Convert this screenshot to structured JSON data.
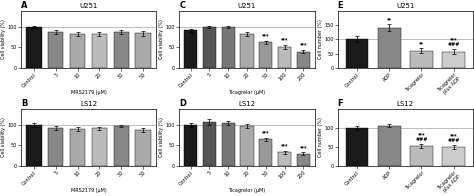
{
  "chart_data": [
    {
      "type": "bar",
      "title": "U251",
      "annotations": [
        {
          "text": "A"
        }
      ],
      "xlabel": "MRS2179 (μM)",
      "ylabel": "Cell viability (%)",
      "categories": [
        "Control",
        "5",
        "10",
        "20",
        "30",
        "50"
      ],
      "values": [
        100,
        88,
        82,
        83,
        87,
        85
      ],
      "errors": [
        3,
        5,
        5,
        4,
        5,
        6
      ],
      "colors": [
        "#1a1a1a",
        "#888888",
        "#aaaaaa",
        "#bbbbbb",
        "#888888",
        "#aaaaaa"
      ],
      "reference_line": 100,
      "ylim": [
        0,
        140
      ],
      "yticks": [
        0,
        50,
        100
      ]
    },
    {
      "type": "bar",
      "title": "U251",
      "annotations": [
        {
          "text": "C"
        },
        {
          "category": "50",
          "text": "***"
        },
        {
          "category": "100",
          "text": "***"
        },
        {
          "category": "200",
          "text": "***"
        }
      ],
      "xlabel": "Ticagrelor (μM)",
      "ylabel": "Cell viability (%)",
      "categories": [
        "Control",
        "5",
        "10",
        "20",
        "50",
        "100",
        "200"
      ],
      "values": [
        92,
        100,
        100,
        83,
        63,
        52,
        40
      ],
      "errors": [
        4,
        3,
        3,
        4,
        4,
        5,
        4
      ],
      "colors": [
        "#1a1a1a",
        "#555555",
        "#777777",
        "#aaaaaa",
        "#999999",
        "#bbbbbb",
        "#888888"
      ],
      "reference_line": 100,
      "ylim": [
        0,
        140
      ],
      "yticks": [
        0,
        50,
        100
      ]
    },
    {
      "type": "bar",
      "title": "U251",
      "annotations": [
        {
          "text": "E"
        },
        {
          "category": "ADP",
          "text": "**"
        },
        {
          "category": "Ticagrelor",
          "text": "**"
        },
        {
          "category": "Ticagrelor\nplus ADP",
          "text": "***\n###"
        }
      ],
      "ylabel": "Cell number (%)",
      "categories": [
        "Control",
        "ADP",
        "Ticagrelor",
        "Ticagrelor\nplus ADP"
      ],
      "values": [
        100,
        140,
        60,
        57
      ],
      "errors": [
        10,
        12,
        8,
        8
      ],
      "colors": [
        "#1a1a1a",
        "#888888",
        "#bbbbbb",
        "#cccccc"
      ],
      "reference_line": 100,
      "ylim": [
        0,
        200
      ],
      "yticks": [
        0,
        50,
        100,
        150
      ]
    },
    {
      "type": "bar",
      "title": "LS12",
      "annotations": [
        {
          "text": "B"
        }
      ],
      "xlabel": "MRS2179 (μM)",
      "ylabel": "Cell viability (%)",
      "categories": [
        "Control",
        "5",
        "10",
        "20",
        "30",
        "50"
      ],
      "values": [
        100,
        93,
        90,
        92,
        98,
        88
      ],
      "errors": [
        4,
        4,
        5,
        4,
        3,
        5
      ],
      "colors": [
        "#1a1a1a",
        "#888888",
        "#aaaaaa",
        "#bbbbbb",
        "#888888",
        "#aaaaaa"
      ],
      "reference_line": 100,
      "ylim": [
        0,
        140
      ],
      "yticks": [
        0,
        50,
        100
      ]
    },
    {
      "type": "bar",
      "title": "LS12",
      "annotations": [
        {
          "text": "D"
        },
        {
          "category": "50",
          "text": "***"
        },
        {
          "category": "100",
          "text": "***"
        },
        {
          "category": "200",
          "text": "***"
        }
      ],
      "xlabel": "Ticagrelor (μM)",
      "ylabel": "Cell viability (%)",
      "categories": [
        "Control",
        "5",
        "10",
        "20",
        "50",
        "100",
        "200"
      ],
      "values": [
        100,
        107,
        105,
        97,
        65,
        33,
        30
      ],
      "errors": [
        5,
        8,
        6,
        5,
        4,
        4,
        3
      ],
      "colors": [
        "#1a1a1a",
        "#555555",
        "#777777",
        "#aaaaaa",
        "#999999",
        "#bbbbbb",
        "#888888"
      ],
      "reference_line": 100,
      "ylim": [
        0,
        140
      ],
      "yticks": [
        0,
        50,
        100
      ]
    },
    {
      "type": "bar",
      "title": "LS12",
      "annotations": [
        {
          "text": "F"
        },
        {
          "category": "Ticagrelor",
          "text": "***\n###"
        },
        {
          "category": "Ticagrelor\nplus ADP",
          "text": "***\n###"
        }
      ],
      "ylabel": "Cell number (%)",
      "categories": [
        "Control",
        "ADP",
        "Ticagrelor",
        "Ticagrelor\nplus ADP"
      ],
      "values": [
        100,
        105,
        52,
        50
      ],
      "errors": [
        5,
        4,
        5,
        5
      ],
      "colors": [
        "#1a1a1a",
        "#888888",
        "#bbbbbb",
        "#cccccc"
      ],
      "reference_line": 100,
      "ylim": [
        0,
        150
      ],
      "yticks": [
        0,
        50,
        100
      ]
    }
  ]
}
